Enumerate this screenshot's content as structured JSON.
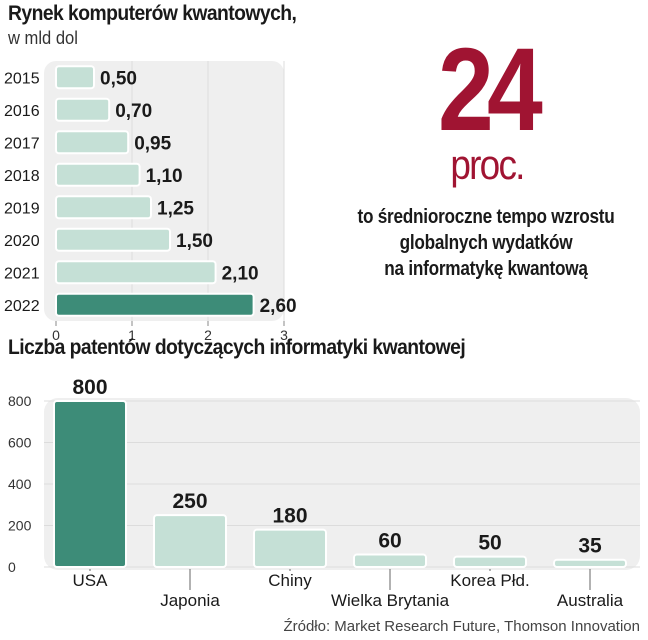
{
  "headline": {
    "number": "24",
    "unit": "proc.",
    "description_lines": [
      "to średnioroczne tempo wzrostu",
      "globalnych wydatków",
      "na informatykę kwantową"
    ]
  },
  "source": "Źródło: Market Research Future, Thomson Innovation",
  "colors": {
    "bar_light": "#c5e0d6",
    "bar_dark": "#3d8c78",
    "panel": "#efefef",
    "accent": "#a01432"
  },
  "chart_data": [
    {
      "type": "bar",
      "orientation": "horizontal",
      "title": "Rynek komputerów kwantowych,",
      "subtitle": "w mld dol",
      "categories": [
        "2015",
        "2016",
        "2017",
        "2018",
        "2019",
        "2020",
        "2021",
        "2022"
      ],
      "values": [
        0.5,
        0.7,
        0.95,
        1.1,
        1.25,
        1.5,
        2.1,
        2.6
      ],
      "value_labels": [
        "0,50",
        "0,70",
        "0,95",
        "1,10",
        "1,25",
        "1,50",
        "2,10",
        "2,60"
      ],
      "xlim": [
        0,
        3
      ],
      "xticks": [
        "0",
        "1",
        "2",
        "3"
      ],
      "highlight_index": 7
    },
    {
      "type": "bar",
      "orientation": "vertical",
      "title": "Liczba patentów dotyczących informatyki kwantowej",
      "categories": [
        "USA",
        "Japonia",
        "Chiny",
        "Wielka Brytania",
        "Korea Płd.",
        "Australia"
      ],
      "values": [
        800,
        250,
        180,
        60,
        50,
        35
      ],
      "value_labels": [
        "800",
        "250",
        "180",
        "60",
        "50",
        "35"
      ],
      "ylim": [
        0,
        800
      ],
      "yticks": [
        "0",
        "200",
        "400",
        "600",
        "800"
      ],
      "highlight_index": 0
    }
  ]
}
